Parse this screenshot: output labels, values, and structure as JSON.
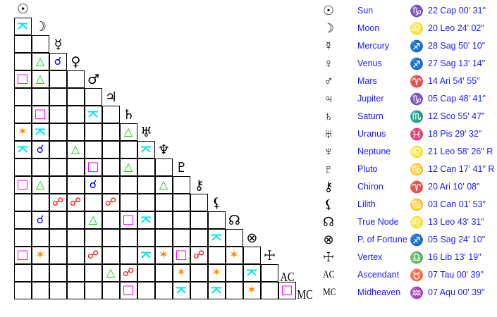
{
  "points": [
    {
      "name": "Sun",
      "glyph": "☉",
      "icon": "sun-icon",
      "sign_glyph": "♑",
      "sign_icon": "capricorn-icon",
      "position": "22 Cap 00' 31\""
    },
    {
      "name": "Moon",
      "glyph": "☽",
      "icon": "moon-icon",
      "sign_glyph": "♌",
      "sign_icon": "leo-icon",
      "position": "20 Leo 24' 02\""
    },
    {
      "name": "Mercury",
      "glyph": "☿",
      "icon": "mercury-icon",
      "sign_glyph": "♐",
      "sign_icon": "sagittarius-icon",
      "position": "28 Sag 50' 10\""
    },
    {
      "name": "Venus",
      "glyph": "♀",
      "icon": "venus-icon",
      "sign_glyph": "♐",
      "sign_icon": "sagittarius-icon",
      "position": "27 Sag 13' 14\""
    },
    {
      "name": "Mars",
      "glyph": "♂",
      "icon": "mars-icon",
      "sign_glyph": "♈",
      "sign_icon": "aries-icon",
      "position": "14 Ari 54' 55\""
    },
    {
      "name": "Jupiter",
      "glyph": "♃",
      "icon": "jupiter-icon",
      "sign_glyph": "♑",
      "sign_icon": "capricorn-icon",
      "position": "05 Cap 48' 41\""
    },
    {
      "name": "Saturn",
      "glyph": "♄",
      "icon": "saturn-icon",
      "sign_glyph": "♏",
      "sign_icon": "scorpio-icon",
      "position": "12 Sco 55' 47\""
    },
    {
      "name": "Uranus",
      "glyph": "♅",
      "icon": "uranus-icon",
      "sign_glyph": "♓",
      "sign_icon": "pisces-icon",
      "position": "18 Pis 29' 32\""
    },
    {
      "name": "Neptune",
      "glyph": "♆",
      "icon": "neptune-icon",
      "sign_glyph": "♌",
      "sign_icon": "leo-icon",
      "position": "21 Leo 58' 26\" R"
    },
    {
      "name": "Pluto",
      "glyph": "♇",
      "icon": "pluto-icon",
      "sign_glyph": "♋",
      "sign_icon": "cancer-icon",
      "position": "12 Can 17' 41\" R"
    },
    {
      "name": "Chiron",
      "glyph": "⚷",
      "icon": "chiron-icon",
      "sign_glyph": "♈",
      "sign_icon": "aries-icon",
      "position": "20 Ari 10' 08\""
    },
    {
      "name": "Lilith",
      "glyph": "⚸",
      "icon": "lilith-icon",
      "sign_glyph": "♋",
      "sign_icon": "cancer-icon",
      "position": "03 Can 01' 53\""
    },
    {
      "name": "True Node",
      "glyph": "☊",
      "icon": "north-node-icon",
      "sign_glyph": "♌",
      "sign_icon": "leo-icon",
      "position": "13 Leo 43' 31\""
    },
    {
      "name": "P. of Fortune",
      "glyph": "⊗",
      "icon": "part-of-fortune-icon",
      "sign_glyph": "♐",
      "sign_icon": "sagittarius-icon",
      "position": "05 Sag 24' 10\""
    },
    {
      "name": "Vertex",
      "glyph": "☩",
      "icon": "vertex-icon",
      "sign_glyph": "♎",
      "sign_icon": "libra-icon",
      "position": "16 Lib 13' 19\""
    },
    {
      "name": "Ascendant",
      "glyph": "AC",
      "icon": "ascendant-icon",
      "sign_glyph": "♉",
      "sign_icon": "taurus-icon",
      "position": "07 Tau 00' 39\""
    },
    {
      "name": "Midheaven",
      "glyph": "MC",
      "icon": "midheaven-icon",
      "sign_glyph": "♒",
      "sign_icon": "aquarius-icon",
      "position": "07 Aqu 00' 39\""
    }
  ],
  "aspect_styles": {
    "conjunction": {
      "glyph": "☌",
      "color": "#0000ff"
    },
    "opposition": {
      "glyph": "☍",
      "color": "#ff0000"
    },
    "trine": {
      "glyph": "△",
      "color": "#00cc00"
    },
    "square": {
      "glyph": "□",
      "color": "#ff00ff"
    },
    "sextile": {
      "glyph": "✶",
      "color": "#ff8800"
    },
    "quincunx": {
      "glyph": "⚻",
      "color": "#00e5e5"
    }
  },
  "aspects": [
    {
      "between": [
        "Moon",
        "Sun"
      ],
      "type": "quincunx"
    },
    {
      "between": [
        "Venus",
        "Moon"
      ],
      "type": "trine"
    },
    {
      "between": [
        "Venus",
        "Mercury"
      ],
      "type": "conjunction"
    },
    {
      "between": [
        "Mars",
        "Sun"
      ],
      "type": "square"
    },
    {
      "between": [
        "Mars",
        "Moon"
      ],
      "type": "trine"
    },
    {
      "between": [
        "Saturn",
        "Moon"
      ],
      "type": "square"
    },
    {
      "between": [
        "Saturn",
        "Mars"
      ],
      "type": "quincunx"
    },
    {
      "between": [
        "Uranus",
        "Sun"
      ],
      "type": "sextile"
    },
    {
      "between": [
        "Uranus",
        "Moon"
      ],
      "type": "quincunx"
    },
    {
      "between": [
        "Uranus",
        "Saturn"
      ],
      "type": "trine"
    },
    {
      "between": [
        "Neptune",
        "Sun"
      ],
      "type": "quincunx"
    },
    {
      "between": [
        "Neptune",
        "Moon"
      ],
      "type": "conjunction"
    },
    {
      "between": [
        "Neptune",
        "Venus"
      ],
      "type": "trine"
    },
    {
      "between": [
        "Neptune",
        "Uranus"
      ],
      "type": "quincunx"
    },
    {
      "between": [
        "Pluto",
        "Mars"
      ],
      "type": "square"
    },
    {
      "between": [
        "Pluto",
        "Saturn"
      ],
      "type": "trine"
    },
    {
      "between": [
        "Chiron",
        "Sun"
      ],
      "type": "square"
    },
    {
      "between": [
        "Chiron",
        "Moon"
      ],
      "type": "trine"
    },
    {
      "between": [
        "Chiron",
        "Mars"
      ],
      "type": "conjunction"
    },
    {
      "between": [
        "Chiron",
        "Neptune"
      ],
      "type": "trine"
    },
    {
      "between": [
        "Lilith",
        "Mercury"
      ],
      "type": "opposition"
    },
    {
      "between": [
        "Lilith",
        "Venus"
      ],
      "type": "opposition"
    },
    {
      "between": [
        "Lilith",
        "Jupiter"
      ],
      "type": "opposition"
    },
    {
      "between": [
        "True Node",
        "Moon"
      ],
      "type": "conjunction"
    },
    {
      "between": [
        "True Node",
        "Mars"
      ],
      "type": "trine"
    },
    {
      "between": [
        "True Node",
        "Saturn"
      ],
      "type": "square"
    },
    {
      "between": [
        "True Node",
        "Uranus"
      ],
      "type": "quincunx"
    },
    {
      "between": [
        "P. of Fortune",
        "Lilith"
      ],
      "type": "quincunx"
    },
    {
      "between": [
        "Vertex",
        "Sun"
      ],
      "type": "square"
    },
    {
      "between": [
        "Vertex",
        "Moon"
      ],
      "type": "sextile"
    },
    {
      "between": [
        "Vertex",
        "Mars"
      ],
      "type": "opposition"
    },
    {
      "between": [
        "Vertex",
        "Uranus"
      ],
      "type": "quincunx"
    },
    {
      "between": [
        "Vertex",
        "Neptune"
      ],
      "type": "sextile"
    },
    {
      "between": [
        "Vertex",
        "Pluto"
      ],
      "type": "square"
    },
    {
      "between": [
        "Vertex",
        "Chiron"
      ],
      "type": "opposition"
    },
    {
      "between": [
        "Vertex",
        "True Node"
      ],
      "type": "sextile"
    },
    {
      "between": [
        "Ascendant",
        "Jupiter"
      ],
      "type": "trine"
    },
    {
      "between": [
        "Ascendant",
        "Saturn"
      ],
      "type": "opposition"
    },
    {
      "between": [
        "Ascendant",
        "Pluto"
      ],
      "type": "sextile"
    },
    {
      "between": [
        "Ascendant",
        "Lilith"
      ],
      "type": "sextile"
    },
    {
      "between": [
        "Ascendant",
        "P. of Fortune"
      ],
      "type": "quincunx"
    },
    {
      "between": [
        "Midheaven",
        "Saturn"
      ],
      "type": "square"
    },
    {
      "between": [
        "Midheaven",
        "Pluto"
      ],
      "type": "quincunx"
    },
    {
      "between": [
        "Midheaven",
        "Lilith"
      ],
      "type": "quincunx"
    },
    {
      "between": [
        "Midheaven",
        "P. of Fortune"
      ],
      "type": "sextile"
    },
    {
      "between": [
        "Midheaven",
        "Ascendant"
      ],
      "type": "square"
    }
  ]
}
